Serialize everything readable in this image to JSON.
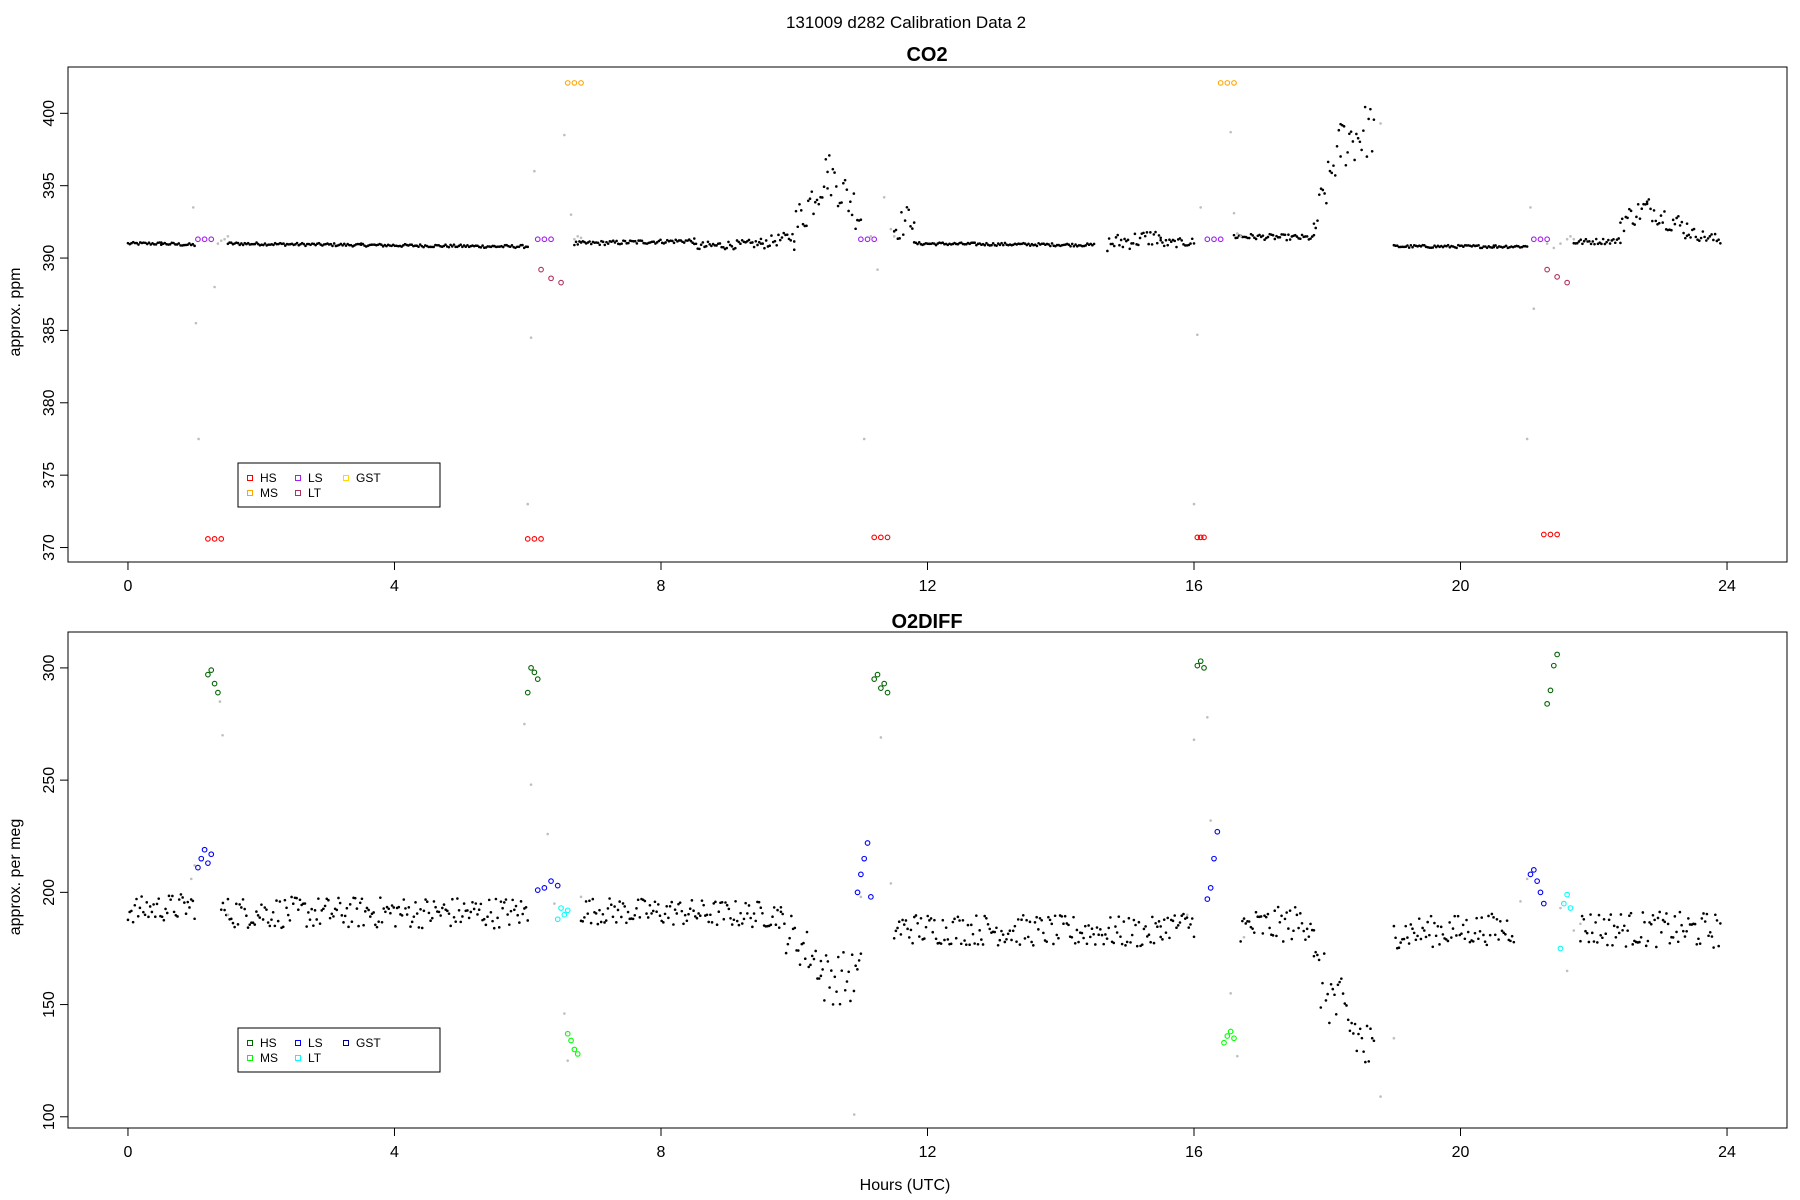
{
  "figure": {
    "title": "131009   d282   Calibration Data 2",
    "xlabel": "Hours (UTC)"
  },
  "chart_data": [
    {
      "type": "scatter",
      "title": "CO2",
      "ylabel": "approx. ppm",
      "xlim": [
        -0.9,
        24.9
      ],
      "ylim": [
        369.0,
        403.2
      ],
      "xticks": [
        0,
        4,
        8,
        12,
        16,
        20,
        24
      ],
      "yticks": [
        370,
        375,
        380,
        385,
        390,
        395,
        400
      ],
      "grid": false,
      "legend_placement": "bottom-left",
      "legend": [
        {
          "label": "HS",
          "color": "#ff0000"
        },
        {
          "label": "MS",
          "color": "#ffa500"
        },
        {
          "label": "LS",
          "color": "#a020f0"
        },
        {
          "label": "LT",
          "color": "#b03060"
        },
        {
          "label": "GST",
          "color": "#ffd700"
        }
      ],
      "ambient_color": "#000000",
      "transition_color": "#bebebe",
      "ambient_segments": [
        {
          "x": [
            0.0,
            0.5
          ],
          "y": [
            391.0,
            391.0
          ],
          "noise": 0.1
        },
        {
          "x": [
            0.5,
            1.0
          ],
          "y": [
            391.0,
            390.9
          ],
          "noise": 0.1
        },
        {
          "x": [
            1.5,
            3.5
          ],
          "y": [
            391.0,
            390.9
          ],
          "noise": 0.1
        },
        {
          "x": [
            3.5,
            5.5
          ],
          "y": [
            390.9,
            390.8
          ],
          "noise": 0.1
        },
        {
          "x": [
            5.5,
            6.0
          ],
          "y": [
            390.8,
            390.8
          ],
          "noise": 0.1
        },
        {
          "x": [
            6.7,
            8.5
          ],
          "y": [
            391.0,
            391.2
          ],
          "noise": 0.15
        },
        {
          "x": [
            8.5,
            9.5
          ],
          "y": [
            390.8,
            391.0
          ],
          "noise": 0.3
        },
        {
          "x": [
            9.5,
            10.0
          ],
          "y": [
            391.0,
            391.5
          ],
          "noise": 0.4
        },
        {
          "x": [
            10.0,
            10.5
          ],
          "y": [
            392.0,
            396.0
          ],
          "noise": 1.5
        },
        {
          "x": [
            10.5,
            11.0
          ],
          "y": [
            396.0,
            393.0
          ],
          "noise": 1.5
        },
        {
          "x": [
            11.5,
            11.8
          ],
          "y": [
            392.0,
            393.0
          ],
          "noise": 1.0
        },
        {
          "x": [
            11.8,
            14.5
          ],
          "y": [
            391.0,
            390.9
          ],
          "noise": 0.1
        },
        {
          "x": [
            14.7,
            15.5
          ],
          "y": [
            391.0,
            391.5
          ],
          "noise": 0.6
        },
        {
          "x": [
            15.5,
            16.0
          ],
          "y": [
            391.0,
            391.1
          ],
          "noise": 0.3
        },
        {
          "x": [
            16.6,
            17.8
          ],
          "y": [
            391.5,
            391.4
          ],
          "noise": 0.2
        },
        {
          "x": [
            17.8,
            18.2
          ],
          "y": [
            392.0,
            398.0
          ],
          "noise": 1.5
        },
        {
          "x": [
            18.2,
            18.7
          ],
          "y": [
            398.0,
            399.0
          ],
          "noise": 2.0
        },
        {
          "x": [
            19.0,
            20.5
          ],
          "y": [
            390.8,
            390.8
          ],
          "noise": 0.1
        },
        {
          "x": [
            20.5,
            21.0
          ],
          "y": [
            390.8,
            390.8
          ],
          "noise": 0.1
        },
        {
          "x": [
            21.7,
            22.4
          ],
          "y": [
            391.1,
            391.2
          ],
          "noise": 0.2
        },
        {
          "x": [
            22.4,
            22.8
          ],
          "y": [
            392.5,
            393.5
          ],
          "noise": 0.8
        },
        {
          "x": [
            22.8,
            23.4
          ],
          "y": [
            393.5,
            392.0
          ],
          "noise": 0.8
        },
        {
          "x": [
            23.4,
            23.9
          ],
          "y": [
            391.8,
            391.2
          ],
          "noise": 0.4
        }
      ],
      "calibration_groups": [
        {
          "label": "LS",
          "color": "#a020f0",
          "x": [
            1.05,
            1.15,
            1.25
          ],
          "y": [
            391.3,
            391.3,
            391.3
          ]
        },
        {
          "label": "HS",
          "color": "#ff0000",
          "x": [
            1.2,
            1.3,
            1.4
          ],
          "y": [
            370.6,
            370.6,
            370.6
          ]
        },
        {
          "label": "LS",
          "color": "#a020f0",
          "x": [
            6.15,
            6.25,
            6.35
          ],
          "y": [
            391.3,
            391.3,
            391.3
          ]
        },
        {
          "label": "HS",
          "color": "#ff0000",
          "x": [
            6.0,
            6.1,
            6.2
          ],
          "y": [
            370.6,
            370.6,
            370.6
          ]
        },
        {
          "label": "LT",
          "color": "#b03060",
          "x": [
            6.2,
            6.35,
            6.5
          ],
          "y": [
            389.2,
            388.6,
            388.3
          ]
        },
        {
          "label": "MS",
          "color": "#ffa500",
          "x": [
            6.6,
            6.7,
            6.8
          ],
          "y": [
            402.1,
            402.1,
            402.1
          ]
        },
        {
          "label": "LS",
          "color": "#a020f0",
          "x": [
            11.0,
            11.1,
            11.2
          ],
          "y": [
            391.3,
            391.3,
            391.3
          ]
        },
        {
          "label": "HS",
          "color": "#ff0000",
          "x": [
            11.2,
            11.3,
            11.4
          ],
          "y": [
            370.7,
            370.7,
            370.7
          ]
        },
        {
          "label": "HS",
          "color": "#ff0000",
          "x": [
            16.05,
            16.1,
            16.15
          ],
          "y": [
            370.7,
            370.7,
            370.7
          ]
        },
        {
          "label": "LS",
          "color": "#a020f0",
          "x": [
            16.2,
            16.3,
            16.4
          ],
          "y": [
            391.3,
            391.3,
            391.3
          ]
        },
        {
          "label": "MS",
          "color": "#ffa500",
          "x": [
            16.4,
            16.5,
            16.6
          ],
          "y": [
            402.1,
            402.1,
            402.1
          ]
        },
        {
          "label": "LS",
          "color": "#a020f0",
          "x": [
            21.1,
            21.2,
            21.3
          ],
          "y": [
            391.3,
            391.3,
            391.3
          ]
        },
        {
          "label": "HS",
          "color": "#ff0000",
          "x": [
            21.25,
            21.35,
            21.45
          ],
          "y": [
            370.9,
            370.9,
            370.9
          ]
        },
        {
          "label": "LT",
          "color": "#b03060",
          "x": [
            21.3,
            21.45,
            21.6
          ],
          "y": [
            389.2,
            388.7,
            388.3
          ]
        }
      ],
      "transition_points": {
        "x": [
          0.98,
          1.02,
          1.06,
          1.3,
          1.35,
          1.4,
          1.45,
          1.5,
          6.0,
          6.05,
          6.1,
          6.55,
          6.65,
          6.7,
          6.75,
          6.8,
          11.05,
          11.15,
          11.25,
          11.35,
          11.45,
          11.5,
          16.0,
          16.05,
          16.1,
          16.55,
          16.6,
          16.65,
          16.7,
          18.8,
          21.0,
          21.05,
          21.1,
          21.3,
          21.4,
          21.5,
          21.6,
          21.65,
          21.7
        ],
        "y": [
          393.5,
          385.5,
          377.5,
          388.0,
          391.0,
          391.2,
          391.3,
          391.5,
          373.0,
          384.5,
          396.0,
          398.5,
          393.0,
          391.3,
          391.5,
          391.4,
          377.5,
          391.5,
          389.2,
          394.2,
          392.0,
          391.5,
          373.0,
          384.7,
          393.5,
          398.7,
          393.1,
          391.7,
          391.5,
          399.3,
          377.5,
          393.5,
          386.5,
          391.0,
          390.7,
          391.0,
          391.3,
          391.5,
          391.3
        ]
      }
    },
    {
      "type": "scatter",
      "title": "O2DIFF",
      "ylabel": "approx. per meg",
      "xlim": [
        -0.9,
        24.9
      ],
      "ylim": [
        95,
        316
      ],
      "xticks": [
        0,
        4,
        8,
        12,
        16,
        20,
        24
      ],
      "yticks": [
        100,
        150,
        200,
        250,
        300
      ],
      "grid": false,
      "legend_placement": "bottom-left",
      "legend": [
        {
          "label": "HS",
          "color": "#006400"
        },
        {
          "label": "MS",
          "color": "#00ff00"
        },
        {
          "label": "LS",
          "color": "#0000ff"
        },
        {
          "label": "LT",
          "color": "#00ffff"
        },
        {
          "label": "GST",
          "color": "#00008b"
        }
      ],
      "ambient_color": "#000000",
      "transition_color": "#bebebe",
      "ambient_segments": [
        {
          "x": [
            0.0,
            1.0
          ],
          "y": [
            192,
            194
          ],
          "noise": 6
        },
        {
          "x": [
            1.4,
            6.0
          ],
          "y": [
            191,
            191
          ],
          "noise": 7
        },
        {
          "x": [
            6.8,
            9.8
          ],
          "y": [
            192,
            190
          ],
          "noise": 6
        },
        {
          "x": [
            9.8,
            10.4
          ],
          "y": [
            185,
            168
          ],
          "noise": 10
        },
        {
          "x": [
            10.4,
            11.0
          ],
          "y": [
            162,
            162
          ],
          "noise": 12
        },
        {
          "x": [
            11.5,
            15.5
          ],
          "y": [
            184,
            182
          ],
          "noise": 7
        },
        {
          "x": [
            15.5,
            16.0
          ],
          "y": [
            185,
            186
          ],
          "noise": 6
        },
        {
          "x": [
            16.7,
            17.8
          ],
          "y": [
            184,
            187
          ],
          "noise": 8
        },
        {
          "x": [
            17.8,
            18.7
          ],
          "y": [
            165,
            125
          ],
          "noise": 15
        },
        {
          "x": [
            19.0,
            20.8
          ],
          "y": [
            182,
            184
          ],
          "noise": 7
        },
        {
          "x": [
            21.8,
            23.9
          ],
          "y": [
            184,
            183
          ],
          "noise": 8
        }
      ],
      "calibration_groups": [
        {
          "label": "LS",
          "color": "#0000ff",
          "x": [
            1.05,
            1.1,
            1.15,
            1.2,
            1.25
          ],
          "y": [
            211,
            215,
            219,
            213,
            217
          ]
        },
        {
          "label": "HS",
          "color": "#006400",
          "x": [
            1.2,
            1.25,
            1.3,
            1.35
          ],
          "y": [
            297,
            299,
            293,
            289
          ]
        },
        {
          "label": "HS",
          "color": "#006400",
          "x": [
            6.0,
            6.05,
            6.1,
            6.15
          ],
          "y": [
            289,
            300,
            298,
            295
          ]
        },
        {
          "label": "LS",
          "color": "#0000ff",
          "x": [
            6.15,
            6.25,
            6.35,
            6.45
          ],
          "y": [
            201,
            202,
            205,
            203
          ]
        },
        {
          "label": "LT",
          "color": "#00ffff",
          "x": [
            6.45,
            6.5,
            6.55,
            6.6
          ],
          "y": [
            188,
            193,
            190,
            192
          ]
        },
        {
          "label": "MS",
          "color": "#00ff00",
          "x": [
            6.6,
            6.65,
            6.7,
            6.75
          ],
          "y": [
            137,
            134,
            130,
            128
          ]
        },
        {
          "label": "LS",
          "color": "#0000ff",
          "x": [
            10.95,
            11.0,
            11.05,
            11.1,
            11.15
          ],
          "y": [
            200,
            208,
            215,
            222,
            198
          ]
        },
        {
          "label": "HS",
          "color": "#006400",
          "x": [
            11.2,
            11.25,
            11.3,
            11.35,
            11.4
          ],
          "y": [
            295,
            297,
            291,
            293,
            289
          ]
        },
        {
          "label": "HS",
          "color": "#006400",
          "x": [
            16.05,
            16.1,
            16.15
          ],
          "y": [
            301,
            303,
            300
          ]
        },
        {
          "label": "LS",
          "color": "#0000ff",
          "x": [
            16.2,
            16.25,
            16.3,
            16.35
          ],
          "y": [
            197,
            202,
            215,
            227
          ]
        },
        {
          "label": "MS",
          "color": "#00ff00",
          "x": [
            16.45,
            16.5,
            16.55,
            16.6
          ],
          "y": [
            133,
            136,
            138,
            135
          ]
        },
        {
          "label": "LS",
          "color": "#0000ff",
          "x": [
            21.05,
            21.1,
            21.15,
            21.2,
            21.25
          ],
          "y": [
            208,
            210,
            205,
            200,
            195
          ]
        },
        {
          "label": "HS",
          "color": "#006400",
          "x": [
            21.3,
            21.35,
            21.4,
            21.45
          ],
          "y": [
            284,
            290,
            301,
            306
          ]
        },
        {
          "label": "LT",
          "color": "#00ffff",
          "x": [
            21.5,
            21.55,
            21.6,
            21.65
          ],
          "y": [
            175,
            195,
            199,
            193
          ]
        }
      ],
      "transition_points": {
        "x": [
          0.95,
          1.0,
          1.38,
          1.42,
          1.5,
          5.95,
          6.05,
          6.3,
          6.4,
          6.55,
          6.6,
          6.8,
          10.9,
          11.0,
          11.3,
          11.45,
          15.9,
          16.0,
          16.2,
          16.25,
          16.55,
          16.65,
          16.75,
          18.8,
          19.0,
          20.9,
          21.0,
          21.5,
          21.6,
          21.7,
          21.8
        ],
        "y": [
          206,
          212,
          285,
          270,
          190,
          275,
          248,
          226,
          195,
          146,
          125,
          198,
          101,
          198,
          269,
          204,
          190,
          268,
          278,
          232,
          155,
          127,
          180,
          109,
          135,
          196,
          206,
          193,
          165,
          183,
          186
        ]
      }
    }
  ]
}
